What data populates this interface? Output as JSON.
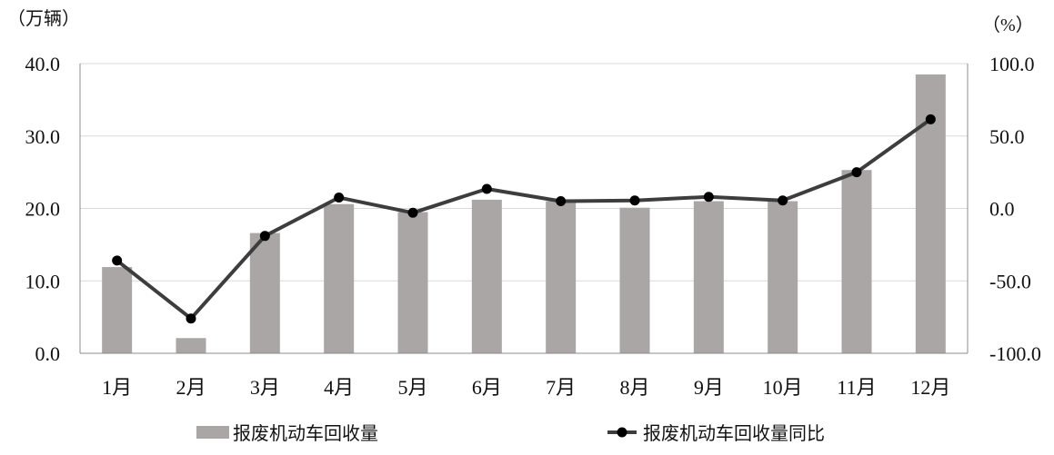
{
  "chart_data": {
    "type": "bar",
    "categories": [
      "1月",
      "2月",
      "3月",
      "4月",
      "5月",
      "6月",
      "7月",
      "8月",
      "9月",
      "10月",
      "11月",
      "12月"
    ],
    "series": [
      {
        "name": "报废机动车回收量",
        "type": "bar",
        "axis": "left",
        "values": [
          11.9,
          2.1,
          16.6,
          20.6,
          19.5,
          21.2,
          21.0,
          20.1,
          21.0,
          21.0,
          25.3,
          38.5
        ]
      },
      {
        "name": "报废机动车回收量同比",
        "type": "line",
        "axis": "right",
        "values": [
          -36.0,
          -76.0,
          -19.0,
          7.5,
          -3.0,
          13.5,
          5.0,
          5.5,
          8.0,
          5.5,
          25.0,
          61.5
        ]
      }
    ],
    "y_left": {
      "unit": "（万辆）",
      "ylim": [
        0,
        40
      ],
      "ticks": [
        "0.0",
        "10.0",
        "20.0",
        "30.0",
        "40.0"
      ]
    },
    "y_right": {
      "unit": "（%）",
      "ylim": [
        -100,
        100
      ],
      "ticks": [
        "-100.0",
        "-50.0",
        "0.0",
        "50.0",
        "100.0"
      ]
    },
    "grid": true,
    "legend_position": "bottom",
    "colors": {
      "bar": "#aaa6a5",
      "line": "#3d3d3d",
      "marker": "#000000",
      "grid": "#d9d9d9",
      "axis": "#8c8c8c"
    }
  }
}
